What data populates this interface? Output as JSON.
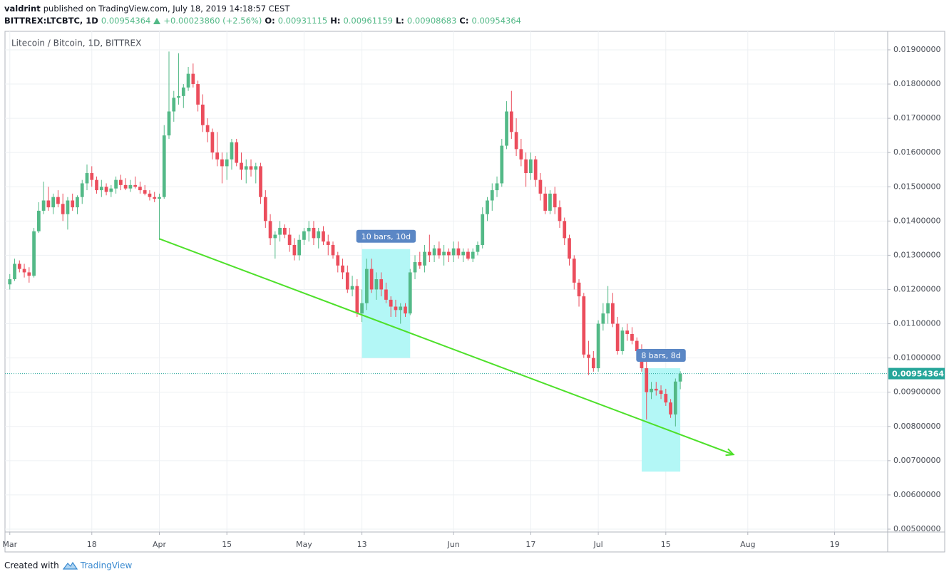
{
  "header": {
    "author": "valdrint",
    "published": "published on TradingView.com, July 18, 2019 14:18:57 CEST",
    "symbol": "BITTREX:LTCBTC, 1D",
    "last": "0.00954364",
    "change": "+0.00023860 (+2.56%)",
    "ohlc": [
      {
        "label": "O:",
        "value": "0.00931115"
      },
      {
        "label": "H:",
        "value": "0.00961159"
      },
      {
        "label": "L:",
        "value": "0.00908683"
      },
      {
        "label": "C:",
        "value": "0.00954364"
      }
    ]
  },
  "footer": {
    "created": "Created with",
    "brand": "TradingView"
  },
  "chart_data": {
    "type": "candlestick",
    "title": "Litecoin / Bitcoin, 1D, BITTREX",
    "up_color": "#53b987",
    "down_color": "#eb4d5c",
    "grid": true,
    "xlim": [
      "2019-02-28",
      "2019-08-30"
    ],
    "xticks": [
      {
        "value": "2019-03-01",
        "label": "Mar"
      },
      {
        "value": "2019-03-18",
        "label": "18"
      },
      {
        "value": "2019-04-01",
        "label": "Apr"
      },
      {
        "value": "2019-04-15",
        "label": "15"
      },
      {
        "value": "2019-05-01",
        "label": "May"
      },
      {
        "value": "2019-05-13",
        "label": "13"
      },
      {
        "value": "2019-06-01",
        "label": "Jun"
      },
      {
        "value": "2019-06-17",
        "label": "17"
      },
      {
        "value": "2019-07-01",
        "label": "Jul"
      },
      {
        "value": "2019-07-15",
        "label": "15"
      },
      {
        "value": "2019-08-01",
        "label": "Aug"
      },
      {
        "value": "2019-08-19",
        "label": "19"
      }
    ],
    "ylim": [
      0.004917,
      0.01954
    ],
    "yticks": [
      {
        "value": 0.005,
        "label": "0.00500000"
      },
      {
        "value": 0.006,
        "label": "0.00600000"
      },
      {
        "value": 0.007,
        "label": "0.00700000"
      },
      {
        "value": 0.008,
        "label": "0.00800000"
      },
      {
        "value": 0.009,
        "label": "0.00900000"
      },
      {
        "value": 0.01,
        "label": "0.01000000"
      },
      {
        "value": 0.011,
        "label": "0.01100000"
      },
      {
        "value": 0.012,
        "label": "0.01200000"
      },
      {
        "value": 0.013,
        "label": "0.01300000"
      },
      {
        "value": 0.014,
        "label": "0.01400000"
      },
      {
        "value": 0.015,
        "label": "0.01500000"
      },
      {
        "value": 0.016,
        "label": "0.01600000"
      },
      {
        "value": 0.017,
        "label": "0.01700000"
      },
      {
        "value": 0.018,
        "label": "0.01800000"
      },
      {
        "value": 0.019,
        "label": "0.01900000"
      }
    ],
    "last_price": {
      "value": 0.00954364,
      "label": "0.00954364",
      "color": "#26a69a"
    },
    "x": [
      "2019-03-01",
      "2019-03-02",
      "2019-03-03",
      "2019-03-04",
      "2019-03-05",
      "2019-03-06",
      "2019-03-07",
      "2019-03-08",
      "2019-03-09",
      "2019-03-10",
      "2019-03-11",
      "2019-03-12",
      "2019-03-13",
      "2019-03-14",
      "2019-03-15",
      "2019-03-16",
      "2019-03-17",
      "2019-03-18",
      "2019-03-19",
      "2019-03-20",
      "2019-03-21",
      "2019-03-22",
      "2019-03-23",
      "2019-03-24",
      "2019-03-25",
      "2019-03-26",
      "2019-03-27",
      "2019-03-28",
      "2019-03-29",
      "2019-03-30",
      "2019-03-31",
      "2019-04-01",
      "2019-04-02",
      "2019-04-03",
      "2019-04-04",
      "2019-04-05",
      "2019-04-06",
      "2019-04-07",
      "2019-04-08",
      "2019-04-09",
      "2019-04-10",
      "2019-04-11",
      "2019-04-12",
      "2019-04-13",
      "2019-04-14",
      "2019-04-15",
      "2019-04-16",
      "2019-04-17",
      "2019-04-18",
      "2019-04-19",
      "2019-04-20",
      "2019-04-21",
      "2019-04-22",
      "2019-04-23",
      "2019-04-24",
      "2019-04-25",
      "2019-04-26",
      "2019-04-27",
      "2019-04-28",
      "2019-04-29",
      "2019-04-30",
      "2019-05-01",
      "2019-05-02",
      "2019-05-03",
      "2019-05-04",
      "2019-05-05",
      "2019-05-06",
      "2019-05-07",
      "2019-05-08",
      "2019-05-09",
      "2019-05-10",
      "2019-05-11",
      "2019-05-12",
      "2019-05-13",
      "2019-05-14",
      "2019-05-15",
      "2019-05-16",
      "2019-05-17",
      "2019-05-18",
      "2019-05-19",
      "2019-05-20",
      "2019-05-21",
      "2019-05-22",
      "2019-05-23",
      "2019-05-24",
      "2019-05-25",
      "2019-05-26",
      "2019-05-27",
      "2019-05-28",
      "2019-05-29",
      "2019-05-30",
      "2019-05-31",
      "2019-06-01",
      "2019-06-02",
      "2019-06-03",
      "2019-06-04",
      "2019-06-05",
      "2019-06-06",
      "2019-06-07",
      "2019-06-08",
      "2019-06-09",
      "2019-06-10",
      "2019-06-11",
      "2019-06-12",
      "2019-06-13",
      "2019-06-14",
      "2019-06-15",
      "2019-06-16",
      "2019-06-17",
      "2019-06-18",
      "2019-06-19",
      "2019-06-20",
      "2019-06-21",
      "2019-06-22",
      "2019-06-23",
      "2019-06-24",
      "2019-06-25",
      "2019-06-26",
      "2019-06-27",
      "2019-06-28",
      "2019-06-29",
      "2019-06-30",
      "2019-07-01",
      "2019-07-02",
      "2019-07-03",
      "2019-07-04",
      "2019-07-05",
      "2019-07-06",
      "2019-07-07",
      "2019-07-08",
      "2019-07-09",
      "2019-07-10",
      "2019-07-11",
      "2019-07-12",
      "2019-07-13",
      "2019-07-14",
      "2019-07-15",
      "2019-07-16",
      "2019-07-17",
      "2019-07-18"
    ],
    "open": [
      0.01215,
      0.0123,
      0.01275,
      0.0126,
      0.0125,
      0.0124,
      0.0137,
      0.0143,
      0.0146,
      0.0144,
      0.0147,
      0.0145,
      0.0142,
      0.0146,
      0.0144,
      0.0147,
      0.0151,
      0.0154,
      0.0152,
      0.0149,
      0.015,
      0.01485,
      0.01495,
      0.0152,
      0.01505,
      0.01495,
      0.01505,
      0.015,
      0.0149,
      0.0148,
      0.0147,
      0.01465,
      0.0147,
      0.0165,
      0.0172,
      0.0176,
      0.01765,
      0.0179,
      0.0183,
      0.018,
      0.0174,
      0.0168,
      0.0166,
      0.016,
      0.0158,
      0.0156,
      0.0158,
      0.0163,
      0.0157,
      0.0155,
      0.0156,
      0.0155,
      0.0156,
      0.0147,
      0.014,
      0.0135,
      0.0136,
      0.0138,
      0.0136,
      0.0133,
      0.013,
      0.01345,
      0.0137,
      0.0138,
      0.0135,
      0.0137,
      0.0134,
      0.0133,
      0.013,
      0.0127,
      0.0125,
      0.012,
      0.0121,
      0.0113,
      0.0116,
      0.0126,
      0.012,
      0.0123,
      0.012,
      0.0117,
      0.0115,
      0.0114,
      0.0115,
      0.0113,
      0.0125,
      0.0128,
      0.0127,
      0.0131,
      0.013,
      0.0132,
      0.013,
      0.0131,
      0.013,
      0.0132,
      0.013,
      0.0131,
      0.0129,
      0.0131,
      0.0133,
      0.0142,
      0.0146,
      0.0149,
      0.0151,
      0.0162,
      0.0172,
      0.0166,
      0.0161,
      0.0158,
      0.0154,
      0.0158,
      0.0152,
      0.0148,
      0.0143,
      0.0148,
      0.0144,
      0.014,
      0.0135,
      0.0129,
      0.0122,
      0.0118,
      0.0101,
      0.01,
      0.0097,
      0.011,
      0.0113,
      0.0116,
      0.011,
      0.0102,
      0.0108,
      0.0107,
      0.0105,
      0.0102,
      0.0097,
      0.009,
      0.0091,
      0.00905,
      0.00895,
      0.0087,
      0.00835,
      0.00931115
    ],
    "high": [
      0.01245,
      0.0129,
      0.01285,
      0.01275,
      0.01265,
      0.0138,
      0.01455,
      0.01515,
      0.015,
      0.0148,
      0.0149,
      0.0148,
      0.0147,
      0.0148,
      0.01475,
      0.0152,
      0.01565,
      0.0156,
      0.0153,
      0.0152,
      0.0151,
      0.01505,
      0.0153,
      0.01535,
      0.01525,
      0.0152,
      0.0153,
      0.01515,
      0.01505,
      0.0149,
      0.01485,
      0.0148,
      0.0168,
      0.01895,
      0.0178,
      0.0189,
      0.018,
      0.0185,
      0.0186,
      0.0181,
      0.0177,
      0.017,
      0.0167,
      0.0166,
      0.016,
      0.016,
      0.0164,
      0.0164,
      0.016,
      0.0158,
      0.0158,
      0.0157,
      0.0157,
      0.0149,
      0.0142,
      0.0137,
      0.014,
      0.0139,
      0.0138,
      0.0135,
      0.0136,
      0.0138,
      0.014,
      0.014,
      0.0138,
      0.01385,
      0.0136,
      0.0134,
      0.0131,
      0.0129,
      0.0127,
      0.0124,
      0.0123,
      0.012,
      0.0129,
      0.0129,
      0.0125,
      0.0125,
      0.0122,
      0.0118,
      0.0117,
      0.0116,
      0.0116,
      0.0126,
      0.013,
      0.0131,
      0.0133,
      0.0136,
      0.0133,
      0.0134,
      0.0133,
      0.0132,
      0.0134,
      0.0134,
      0.0132,
      0.0132,
      0.0132,
      0.0134,
      0.0144,
      0.0147,
      0.0151,
      0.0153,
      0.0164,
      0.0175,
      0.0178,
      0.017,
      0.0164,
      0.016,
      0.016,
      0.0159,
      0.0154,
      0.015,
      0.0149,
      0.015,
      0.0146,
      0.0141,
      0.0136,
      0.013,
      0.0123,
      0.0119,
      0.0105,
      0.0102,
      0.0111,
      0.0116,
      0.0121,
      0.0119,
      0.0112,
      0.0109,
      0.011,
      0.0109,
      0.0106,
      0.0104,
      0.0099,
      0.0093,
      0.0093,
      0.0092,
      0.0091,
      0.0088,
      0.0094,
      0.00961159
    ],
    "low": [
      0.012,
      0.01225,
      0.0125,
      0.01235,
      0.0122,
      0.01235,
      0.01365,
      0.0142,
      0.0143,
      0.0142,
      0.0144,
      0.014,
      0.01375,
      0.0143,
      0.0142,
      0.0145,
      0.0149,
      0.015,
      0.0148,
      0.0147,
      0.01475,
      0.0147,
      0.0148,
      0.0149,
      0.0149,
      0.01485,
      0.01495,
      0.0148,
      0.01475,
      0.0146,
      0.01455,
      0.01345,
      0.01465,
      0.0164,
      0.0169,
      0.0174,
      0.0173,
      0.0178,
      0.0179,
      0.0172,
      0.0166,
      0.0163,
      0.0158,
      0.0156,
      0.0151,
      0.0152,
      0.0155,
      0.0156,
      0.0152,
      0.0151,
      0.0153,
      0.0151,
      0.0145,
      0.0138,
      0.0133,
      0.0129,
      0.0134,
      0.0135,
      0.0131,
      0.01285,
      0.01285,
      0.0133,
      0.0134,
      0.0133,
      0.0132,
      0.0133,
      0.013,
      0.0129,
      0.0125,
      0.0123,
      0.0119,
      0.0118,
      0.0112,
      0.01105,
      0.0114,
      0.0119,
      0.0117,
      0.0118,
      0.0116,
      0.0112,
      0.0112,
      0.011,
      0.0112,
      0.01125,
      0.0123,
      0.0126,
      0.0125,
      0.0128,
      0.0128,
      0.0129,
      0.0127,
      0.0128,
      0.0128,
      0.0129,
      0.0128,
      0.01285,
      0.0128,
      0.013,
      0.0132,
      0.014,
      0.0143,
      0.0147,
      0.015,
      0.0161,
      0.0164,
      0.0159,
      0.0156,
      0.015,
      0.0152,
      0.015,
      0.0146,
      0.0142,
      0.0142,
      0.0142,
      0.0138,
      0.0133,
      0.0127,
      0.012,
      0.0115,
      0.01,
      0.0095,
      0.0096,
      0.0096,
      0.0108,
      0.011,
      0.0109,
      0.0101,
      0.0101,
      0.0105,
      0.0104,
      0.0101,
      0.0096,
      0.0082,
      0.0088,
      0.0089,
      0.0088,
      0.0086,
      0.00825,
      0.008,
      0.00908683
    ],
    "close": [
      0.0123,
      0.01275,
      0.0126,
      0.0125,
      0.0124,
      0.0137,
      0.0143,
      0.0146,
      0.0144,
      0.0147,
      0.0145,
      0.0142,
      0.0146,
      0.0144,
      0.0147,
      0.0151,
      0.0154,
      0.0152,
      0.0149,
      0.015,
      0.01485,
      0.01495,
      0.0152,
      0.01505,
      0.01495,
      0.01505,
      0.015,
      0.0149,
      0.0148,
      0.0147,
      0.01465,
      0.0147,
      0.0165,
      0.0172,
      0.0176,
      0.01765,
      0.0179,
      0.0183,
      0.018,
      0.0174,
      0.0168,
      0.0166,
      0.016,
      0.0158,
      0.0156,
      0.0158,
      0.0163,
      0.0157,
      0.0155,
      0.0156,
      0.0155,
      0.0156,
      0.0147,
      0.014,
      0.0135,
      0.0136,
      0.0138,
      0.0136,
      0.0133,
      0.013,
      0.01345,
      0.0137,
      0.0138,
      0.0135,
      0.0137,
      0.0134,
      0.0133,
      0.013,
      0.0127,
      0.0125,
      0.012,
      0.0121,
      0.0113,
      0.0116,
      0.0126,
      0.012,
      0.0123,
      0.012,
      0.0117,
      0.0115,
      0.0114,
      0.0115,
      0.0113,
      0.0125,
      0.0128,
      0.0127,
      0.0131,
      0.013,
      0.0132,
      0.013,
      0.0131,
      0.013,
      0.0132,
      0.013,
      0.0131,
      0.0129,
      0.0131,
      0.0133,
      0.0142,
      0.0146,
      0.0149,
      0.0151,
      0.0162,
      0.0172,
      0.0166,
      0.0161,
      0.0158,
      0.0154,
      0.0158,
      0.0152,
      0.0148,
      0.0143,
      0.0148,
      0.0144,
      0.014,
      0.0135,
      0.0129,
      0.0122,
      0.0118,
      0.0101,
      0.01,
      0.0097,
      0.011,
      0.0113,
      0.0116,
      0.011,
      0.0102,
      0.0108,
      0.0107,
      0.0105,
      0.0102,
      0.0097,
      0.009,
      0.0091,
      0.00905,
      0.00895,
      0.0087,
      0.00835,
      0.00931115,
      0.00954364
    ],
    "trendline": {
      "x": [
        "2019-04-01",
        "2019-07-29"
      ],
      "values": [
        0.01348,
        0.00718
      ],
      "color": "#4ee02a"
    },
    "ranges": [
      {
        "label": "10 bars, 10d",
        "x": [
          "2019-05-13",
          "2019-05-23"
        ],
        "values": [
          0.01,
          0.01318
        ]
      },
      {
        "label": "8 bars, 8d",
        "x": [
          "2019-07-10",
          "2019-07-18"
        ],
        "values": [
          0.00668,
          0.0097
        ]
      }
    ]
  }
}
